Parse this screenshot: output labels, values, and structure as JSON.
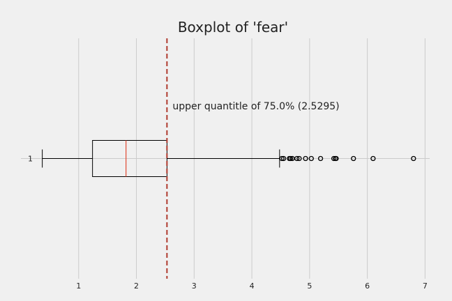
{
  "chart_data": {
    "type": "boxplot",
    "orientation": "horizontal",
    "title": "Boxplot of 'fear'",
    "xlabel": "",
    "ylabel": "",
    "xlim": [
      0.0,
      7.08
    ],
    "xticks": [
      1,
      2,
      3,
      4,
      5,
      6,
      7
    ],
    "yticks": [
      "1"
    ],
    "grid": "vertical",
    "box": {
      "label": "1",
      "whisker_low": 0.37,
      "q1": 1.24,
      "median": 1.82,
      "q3": 2.53,
      "whisker_high": 4.48,
      "outliers": [
        4.52,
        4.55,
        4.65,
        4.67,
        4.7,
        4.78,
        4.82,
        4.93,
        5.03,
        5.19,
        5.42,
        5.45,
        5.46,
        5.76,
        6.1,
        6.8
      ]
    },
    "reference_line": {
      "value": 2.5295,
      "style": "dashed",
      "color": "#b03a2e",
      "annotation": "upper quantitle of 75.0% (2.5295)"
    },
    "colors": {
      "background": "#f0f0f0",
      "grid": "#cbcbcb",
      "box": "#000000",
      "median": "#e24a33",
      "reference": "#b03a2e"
    }
  }
}
